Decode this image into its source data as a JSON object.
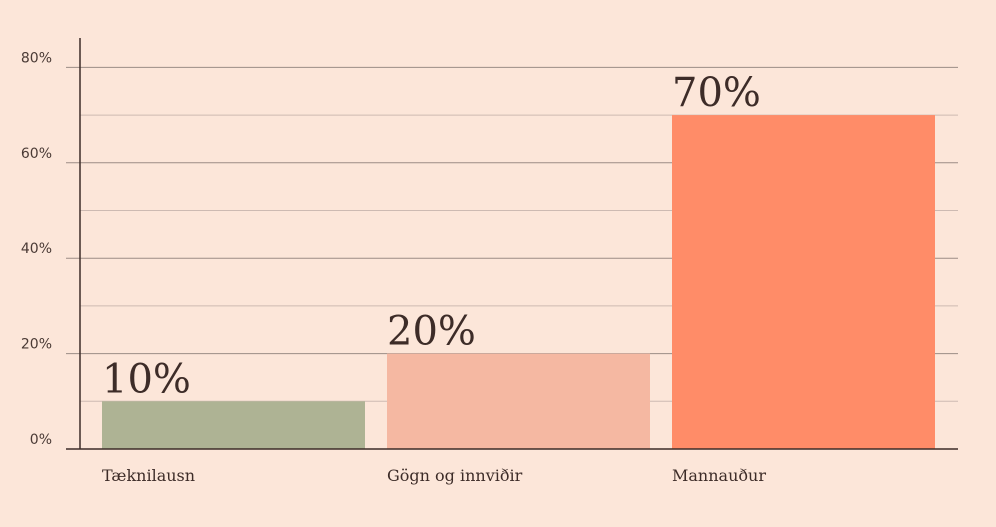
{
  "chart_data": {
    "type": "bar",
    "categories": [
      "Tæknilausn",
      "Gögn og innviðir",
      "Mannauður"
    ],
    "values": [
      10,
      20,
      70
    ],
    "data_labels": [
      "10%",
      "20%",
      "70%"
    ],
    "bar_colors": [
      "#aeb394",
      "#f5b8a2",
      "#ff8c68"
    ],
    "ylim": [
      0,
      80
    ],
    "y_ticks": [
      0,
      20,
      40,
      60,
      80
    ],
    "y_tick_labels": [
      "0%",
      "20%",
      "40%",
      "60%",
      "80%"
    ],
    "grid": true,
    "minor_grid": true,
    "title": "",
    "xlabel": "",
    "ylabel": ""
  },
  "colors": {
    "background": "#fce6d9",
    "grid_major": "#9b8c86",
    "grid_minor": "#cdbab2",
    "axis": "#3d2c28"
  }
}
